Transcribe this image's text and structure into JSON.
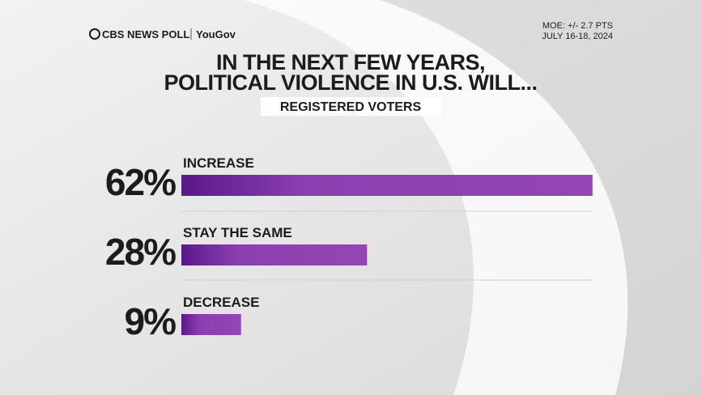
{
  "chart_data": {
    "type": "bar",
    "title": [
      "IN THE NEXT FEW YEARS,",
      "POLITICAL VIOLENCE IN U.S. WILL..."
    ],
    "subtitle": "REGISTERED VOTERS",
    "source": "CBS NEWS POLL",
    "partner": "YouGov",
    "moe": "MOE: +/- 2.7 PTS",
    "date": "JULY 16-18, 2024",
    "categories": [
      "INCREASE",
      "STAY THE SAME",
      "DECREASE"
    ],
    "values": [
      62,
      28,
      9
    ],
    "value_labels": [
      "62%",
      "28%",
      "9%"
    ],
    "color": "#7b2fa5"
  }
}
